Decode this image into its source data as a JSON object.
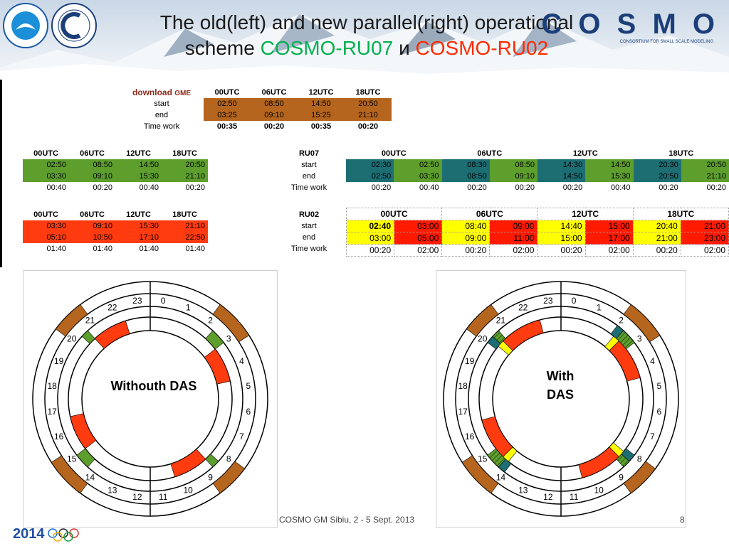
{
  "title": {
    "line1": "The old(left) and new parallel(right) operational",
    "line2_prefix": "scheme ",
    "ru07": "COSMO-RU07",
    "connector": " и ",
    "ru02": "COSMO-RU02"
  },
  "logos": {
    "cosmo": "C O S M O",
    "cosmo_subtitle": "CONSORTIUM FOR SMALL SCALE MODELING",
    "roshydromet": "РОСГИДРОМЕТ ROSHYDROMET",
    "sochi": "2014"
  },
  "gme_table": {
    "title_main": "download",
    "title_sub": "GME",
    "columns": [
      "00UTC",
      "06UTC",
      "12UTC",
      "18UTC"
    ],
    "rows": [
      {
        "label": "start",
        "values": [
          "02:50",
          "08:50",
          "14:50",
          "20:50"
        ]
      },
      {
        "label": "end",
        "values": [
          "03:25",
          "09:10",
          "15:25",
          "21:10"
        ]
      },
      {
        "label": "Time work",
        "values": [
          "00:35",
          "00:20",
          "00:35",
          "00:20"
        ]
      }
    ]
  },
  "old_ru07": {
    "columns": [
      "00UTC",
      "06UTC",
      "12UTC",
      "18UTC"
    ],
    "label_header": "RU07",
    "rows": [
      {
        "label": "start",
        "values": [
          "02:50",
          "08:50",
          "14:50",
          "20:50"
        ]
      },
      {
        "label": "end",
        "values": [
          "03:30",
          "09:10",
          "15:30",
          "21:10"
        ]
      },
      {
        "label": "Time work",
        "values": [
          "00:40",
          "00:20",
          "00:40",
          "00:20"
        ]
      }
    ]
  },
  "old_ru02": {
    "columns": [
      "00UTC",
      "06UTC",
      "12UTC",
      "18UTC"
    ],
    "label_header": "RU02",
    "rows": [
      {
        "label": "start",
        "values": [
          "03:30",
          "09:10",
          "15:30",
          "21:10"
        ]
      },
      {
        "label": "end",
        "values": [
          "05:10",
          "10:50",
          "17:10",
          "22:50"
        ]
      },
      {
        "label": "Time work",
        "values": [
          "01:40",
          "01:40",
          "01:40",
          "01:40"
        ]
      }
    ]
  },
  "new_ru07": {
    "columns": [
      "00UTC",
      "06UTC",
      "12UTC",
      "18UTC"
    ],
    "rows": [
      {
        "values": [
          "02:30",
          "02:50",
          "08:30",
          "08:50",
          "14:30",
          "14:50",
          "20:30",
          "20:50"
        ]
      },
      {
        "values": [
          "02:50",
          "03:30",
          "08:50",
          "09:10",
          "14:50",
          "15:30",
          "20:50",
          "21:10"
        ]
      },
      {
        "values": [
          "00:20",
          "00:40",
          "00:20",
          "00:20",
          "00:20",
          "00:40",
          "00:20",
          "00:20"
        ]
      }
    ]
  },
  "new_ru02": {
    "columns": [
      "00UTC",
      "06UTC",
      "12UTC",
      "18UTC"
    ],
    "rows": [
      {
        "values": [
          "02:40",
          "03:00",
          "08:40",
          "09:00",
          "14:40",
          "15:00",
          "20:40",
          "21:00"
        ]
      },
      {
        "values": [
          "03:00",
          "05:00",
          "09:00",
          "11:00",
          "15:00",
          "17:00",
          "21:00",
          "23:00"
        ]
      },
      {
        "values": [
          "00:20",
          "02:00",
          "00:20",
          "02:00",
          "00:20",
          "02:00",
          "00:20",
          "02:00"
        ]
      }
    ]
  },
  "clock_left": {
    "label": "Withouth DAS",
    "hours": [
      "0",
      "1",
      "2",
      "3",
      "4",
      "5",
      "6",
      "7",
      "8",
      "9",
      "10",
      "11",
      "12",
      "13",
      "14",
      "15",
      "16",
      "17",
      "18",
      "19",
      "20",
      "21",
      "22",
      "23"
    ]
  },
  "clock_right": {
    "label": "With DAS",
    "hours": [
      "0",
      "1",
      "2",
      "3",
      "4",
      "5",
      "6",
      "7",
      "8",
      "9",
      "10",
      "11",
      "12",
      "13",
      "14",
      "15",
      "16",
      "17",
      "18",
      "19",
      "20",
      "21",
      "22",
      "23"
    ]
  },
  "colors": {
    "brown": "#b5651d",
    "green": "#5d9e2d",
    "teal": "#1d6e73",
    "orange_red": "#ff3b0f",
    "yellow": "#ffff00",
    "red": "#ff1a00"
  },
  "footer": {
    "text": "COSMO GM Sibiu, 2 - 5   Sept. 2013",
    "page": "8"
  }
}
